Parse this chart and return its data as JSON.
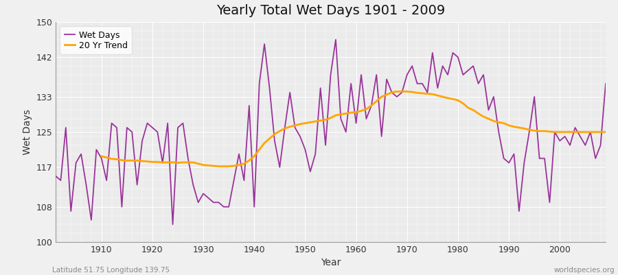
{
  "title": "Yearly Total Wet Days 1901 - 2009",
  "xlabel": "Year",
  "ylabel": "Wet Days",
  "footnote_left": "Latitude 51.75 Longitude 139.75",
  "footnote_right": "worldspecies.org",
  "line_color": "#993399",
  "trend_color": "#ffa500",
  "bg_color": "#f0f0f0",
  "plot_bg_color": "#ebebeb",
  "ylim": [
    100,
    150
  ],
  "yticks": [
    100,
    108,
    117,
    125,
    133,
    142,
    150
  ],
  "xticks": [
    1910,
    1920,
    1930,
    1940,
    1950,
    1960,
    1970,
    1980,
    1990,
    2000
  ],
  "years": [
    1901,
    1902,
    1903,
    1904,
    1905,
    1906,
    1907,
    1908,
    1909,
    1910,
    1911,
    1912,
    1913,
    1914,
    1915,
    1916,
    1917,
    1918,
    1919,
    1920,
    1921,
    1922,
    1923,
    1924,
    1925,
    1926,
    1927,
    1928,
    1929,
    1930,
    1931,
    1932,
    1933,
    1934,
    1935,
    1936,
    1937,
    1938,
    1939,
    1940,
    1941,
    1942,
    1943,
    1944,
    1945,
    1946,
    1947,
    1948,
    1949,
    1950,
    1951,
    1952,
    1953,
    1954,
    1955,
    1956,
    1957,
    1958,
    1959,
    1960,
    1961,
    1962,
    1963,
    1964,
    1965,
    1966,
    1967,
    1968,
    1969,
    1970,
    1971,
    1972,
    1973,
    1974,
    1975,
    1976,
    1977,
    1978,
    1979,
    1980,
    1981,
    1982,
    1983,
    1984,
    1985,
    1986,
    1987,
    1988,
    1989,
    1990,
    1991,
    1992,
    1993,
    1994,
    1995,
    1996,
    1997,
    1998,
    1999,
    2000,
    2001,
    2002,
    2003,
    2004,
    2005,
    2006,
    2007,
    2008,
    2009
  ],
  "wet_days": [
    115,
    114,
    126,
    107,
    118,
    120,
    113,
    105,
    121,
    119,
    114,
    127,
    126,
    108,
    126,
    125,
    113,
    123,
    127,
    126,
    125,
    118,
    127,
    104,
    126,
    127,
    119,
    113,
    109,
    111,
    110,
    109,
    109,
    108,
    108,
    114,
    120,
    114,
    131,
    108,
    136,
    145,
    135,
    123,
    117,
    126,
    134,
    126,
    124,
    121,
    116,
    120,
    135,
    122,
    138,
    146,
    128,
    125,
    136,
    127,
    138,
    128,
    131,
    138,
    124,
    137,
    134,
    133,
    134,
    138,
    140,
    136,
    136,
    134,
    143,
    135,
    140,
    138,
    143,
    142,
    138,
    139,
    140,
    136,
    138,
    130,
    133,
    125,
    119,
    118,
    120,
    107,
    118,
    125,
    133,
    119,
    119,
    109,
    125,
    123,
    124,
    122,
    126,
    124,
    122,
    125,
    119,
    122,
    136
  ],
  "trend": [
    null,
    null,
    null,
    null,
    null,
    null,
    null,
    null,
    null,
    119.5,
    119.2,
    118.9,
    118.8,
    118.6,
    118.5,
    118.5,
    118.5,
    118.4,
    118.3,
    118.2,
    118.2,
    118.1,
    118.1,
    118.1,
    118.0,
    118.1,
    118.1,
    118.1,
    117.8,
    117.5,
    117.4,
    117.3,
    117.2,
    117.2,
    117.2,
    117.3,
    117.5,
    117.8,
    118.5,
    119.5,
    121.0,
    122.5,
    123.5,
    124.5,
    125.2,
    125.8,
    126.2,
    126.5,
    126.8,
    127.0,
    127.2,
    127.4,
    127.6,
    127.8,
    128.2,
    128.8,
    129.0,
    129.2,
    129.4,
    129.5,
    129.8,
    130.2,
    131.0,
    132.0,
    133.0,
    133.5,
    134.0,
    134.2,
    134.2,
    134.2,
    134.1,
    133.9,
    133.8,
    133.7,
    133.6,
    133.3,
    133.0,
    132.7,
    132.5,
    132.2,
    131.5,
    130.5,
    130.0,
    129.2,
    128.5,
    128.0,
    127.5,
    127.2,
    127.0,
    126.5,
    126.2,
    126.0,
    125.8,
    125.5,
    125.3,
    125.2,
    125.2,
    125.1,
    125.0,
    125.0,
    125.0,
    125.0,
    125.0,
    125.0,
    125.0,
    125.0,
    125.0,
    125.0,
    125.0
  ]
}
